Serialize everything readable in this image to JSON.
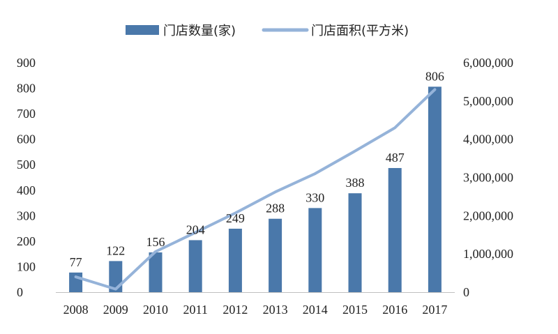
{
  "chart_data": {
    "type": "bar+line",
    "categories": [
      "2008",
      "2009",
      "2010",
      "2011",
      "2012",
      "2013",
      "2014",
      "2015",
      "2016",
      "2017"
    ],
    "series": [
      {
        "name": "门店数量(家)",
        "type": "bar",
        "axis": "left",
        "color": "#4a78aa",
        "values": [
          77,
          122,
          156,
          204,
          249,
          288,
          330,
          388,
          487,
          806
        ],
        "labels": [
          "77",
          "122",
          "156",
          "204",
          "249",
          "288",
          "330",
          "388",
          "487",
          "806"
        ]
      },
      {
        "name": "门店面积(平方米)",
        "type": "line",
        "axis": "right",
        "color": "#95b3d9",
        "values": [
          400000,
          80000,
          1060000,
          1560000,
          2070000,
          2620000,
          3100000,
          3690000,
          4300000,
          5300000
        ]
      }
    ],
    "y_left": {
      "ylim": [
        0,
        900
      ],
      "ticks": [
        0,
        100,
        200,
        300,
        400,
        500,
        600,
        700,
        800,
        900
      ],
      "tick_labels": [
        "0",
        "100",
        "200",
        "300",
        "400",
        "500",
        "600",
        "700",
        "800",
        "900"
      ]
    },
    "y_right": {
      "ylim": [
        0,
        6000000
      ],
      "ticks": [
        0,
        1000000,
        2000000,
        3000000,
        4000000,
        5000000,
        6000000
      ],
      "tick_labels": [
        "0",
        "1,000,000",
        "2,000,000",
        "3,000,000",
        "4,000,000",
        "5,000,000",
        "6,000,000"
      ]
    },
    "legend": "top-center",
    "grid": false
  }
}
